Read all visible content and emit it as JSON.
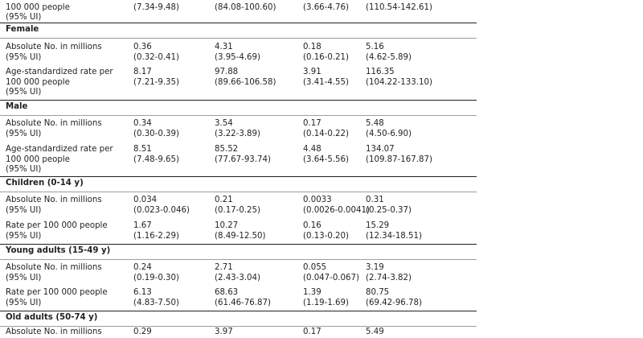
{
  "top_row": {
    "label": [
      "100 000 people",
      "(95% UI)"
    ],
    "values": [
      [
        "",
        "(7.34-9.48)"
      ],
      [
        "",
        "(84.08-100.60)"
      ],
      [
        "",
        "(3.66-4.76)"
      ],
      [
        "",
        "(110.54-142.61)"
      ]
    ]
  },
  "sections": [
    {
      "title": "Female",
      "rows": [
        {
          "label": [
            "Absolute No. in millions",
            "(95% UI)"
          ],
          "values": [
            [
              "0.36",
              "(0.32-0.41)"
            ],
            [
              "4.31",
              "(3.95-4.69)"
            ],
            [
              "0.18",
              "(0.16-0.21)"
            ],
            [
              "5.16",
              "(4.62-5.89)"
            ]
          ]
        },
        {
          "label": [
            "Age-standardized rate per",
            "100 000 people",
            "(95% UI)"
          ],
          "values": [
            [
              "8.17",
              "(7.21-9.35)"
            ],
            [
              "97.88",
              "(89.66-106.58)"
            ],
            [
              "3.91",
              "(3.41-4.55)"
            ],
            [
              "116.35",
              "(104.22-133.10)"
            ]
          ]
        }
      ]
    },
    {
      "title": "Male",
      "rows": [
        {
          "label": [
            "Absolute No. in millions",
            "(95% UI)"
          ],
          "values": [
            [
              "0.34",
              "(0.30-0.39)"
            ],
            [
              "3.54",
              "(3.22-3.89)"
            ],
            [
              "0.17",
              "(0.14-0.22)"
            ],
            [
              "5.48",
              "(4.50-6.90)"
            ]
          ]
        },
        {
          "label": [
            "Age-standardized rate per",
            "100 000 people",
            "(95% UI)"
          ],
          "values": [
            [
              "8.51",
              "(7.48-9.65)"
            ],
            [
              "85.52",
              "(77.67-93.74)"
            ],
            [
              "4.48",
              "(3.64-5.56)"
            ],
            [
              "134.07",
              "(109.87-167.87)"
            ]
          ]
        }
      ]
    },
    {
      "title": "Children (0-14 y)",
      "rows": [
        {
          "label": [
            "Absolute No. in millions",
            "(95% UI)"
          ],
          "values": [
            [
              "0.034",
              "(0.023-0.046)"
            ],
            [
              "0.21",
              "(0.17-0.25)"
            ],
            [
              "0.0033",
              "(0.0026-0.0041)"
            ],
            [
              "0.31",
              "(0.25-0.37)"
            ]
          ]
        },
        {
          "label": [
            "Rate per 100 000 people",
            "(95% UI)"
          ],
          "values": [
            [
              "1.67",
              "(1.16-2.29)"
            ],
            [
              "10.27",
              "(8.49-12.50)"
            ],
            [
              "0.16",
              "(0.13-0.20)"
            ],
            [
              "15.29",
              "(12.34-18.51)"
            ]
          ]
        }
      ]
    },
    {
      "title": "Young adults (15-49 y)",
      "rows": [
        {
          "label": [
            "Absolute No. in millions",
            "(95% UI)"
          ],
          "values": [
            [
              "0.24",
              "(0.19-0.30)"
            ],
            [
              "2.71",
              "(2.43-3.04)"
            ],
            [
              "0.055",
              "(0.047-0.067)"
            ],
            [
              "3.19",
              "(2.74-3.82)"
            ]
          ]
        },
        {
          "label": [
            "Rate per 100 000 people",
            "(95% UI)"
          ],
          "values": [
            [
              "6.13",
              "(4.83-7.50)"
            ],
            [
              "68.63",
              "(61.46-76.87)"
            ],
            [
              "1.39",
              "(1.19-1.69)"
            ],
            [
              "80.75",
              "(69.42-96.78)"
            ]
          ]
        }
      ]
    },
    {
      "title": "Old adults (50-74 y)",
      "rows": [
        {
          "label": [
            "Absolute No. in millions"
          ],
          "values": [
            [
              "0.29"
            ],
            [
              "3.97"
            ],
            [
              "0.17"
            ],
            [
              "5.49"
            ]
          ]
        }
      ]
    }
  ]
}
